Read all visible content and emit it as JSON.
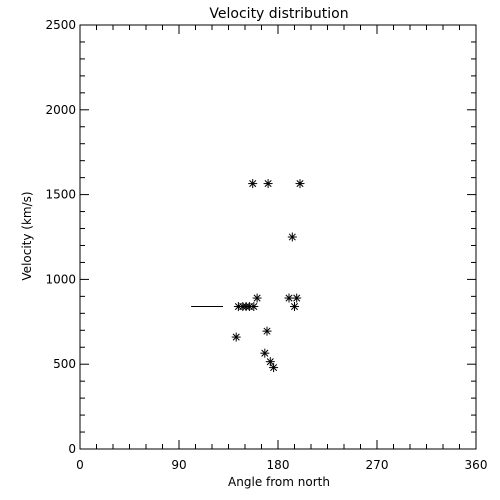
{
  "chart_data": {
    "type": "scatter",
    "title": "Velocity distribution",
    "xlabel": "Angle from north",
    "ylabel": "Velocity (km/s)",
    "xlim": [
      0,
      360
    ],
    "ylim": [
      0,
      2500
    ],
    "xticks": [
      0,
      90,
      180,
      270,
      360
    ],
    "xtick_labels": [
      "0",
      "90",
      "180",
      "270",
      "360"
    ],
    "yticks": [
      0,
      500,
      1000,
      1500,
      2000,
      2500
    ],
    "ytick_labels": [
      "0",
      "500",
      "1000",
      "1500",
      "2000",
      "2500"
    ],
    "grid": false,
    "legend": "none",
    "marker": "asterisk",
    "color": "#000000",
    "points": [
      {
        "x": 157,
        "y": 1565
      },
      {
        "x": 171,
        "y": 1565
      },
      {
        "x": 200,
        "y": 1565
      },
      {
        "x": 193,
        "y": 1250
      },
      {
        "x": 161,
        "y": 890
      },
      {
        "x": 190,
        "y": 890
      },
      {
        "x": 197,
        "y": 890
      },
      {
        "x": 144,
        "y": 840
      },
      {
        "x": 148,
        "y": 840
      },
      {
        "x": 151,
        "y": 840
      },
      {
        "x": 154,
        "y": 840
      },
      {
        "x": 158,
        "y": 840
      },
      {
        "x": 195,
        "y": 840
      },
      {
        "x": 170,
        "y": 695
      },
      {
        "x": 142,
        "y": 660
      },
      {
        "x": 168,
        "y": 565
      },
      {
        "x": 173,
        "y": 515
      },
      {
        "x": 176,
        "y": 480
      }
    ],
    "segments": [
      {
        "x0": 101,
        "x1": 130,
        "y": 840
      }
    ]
  }
}
